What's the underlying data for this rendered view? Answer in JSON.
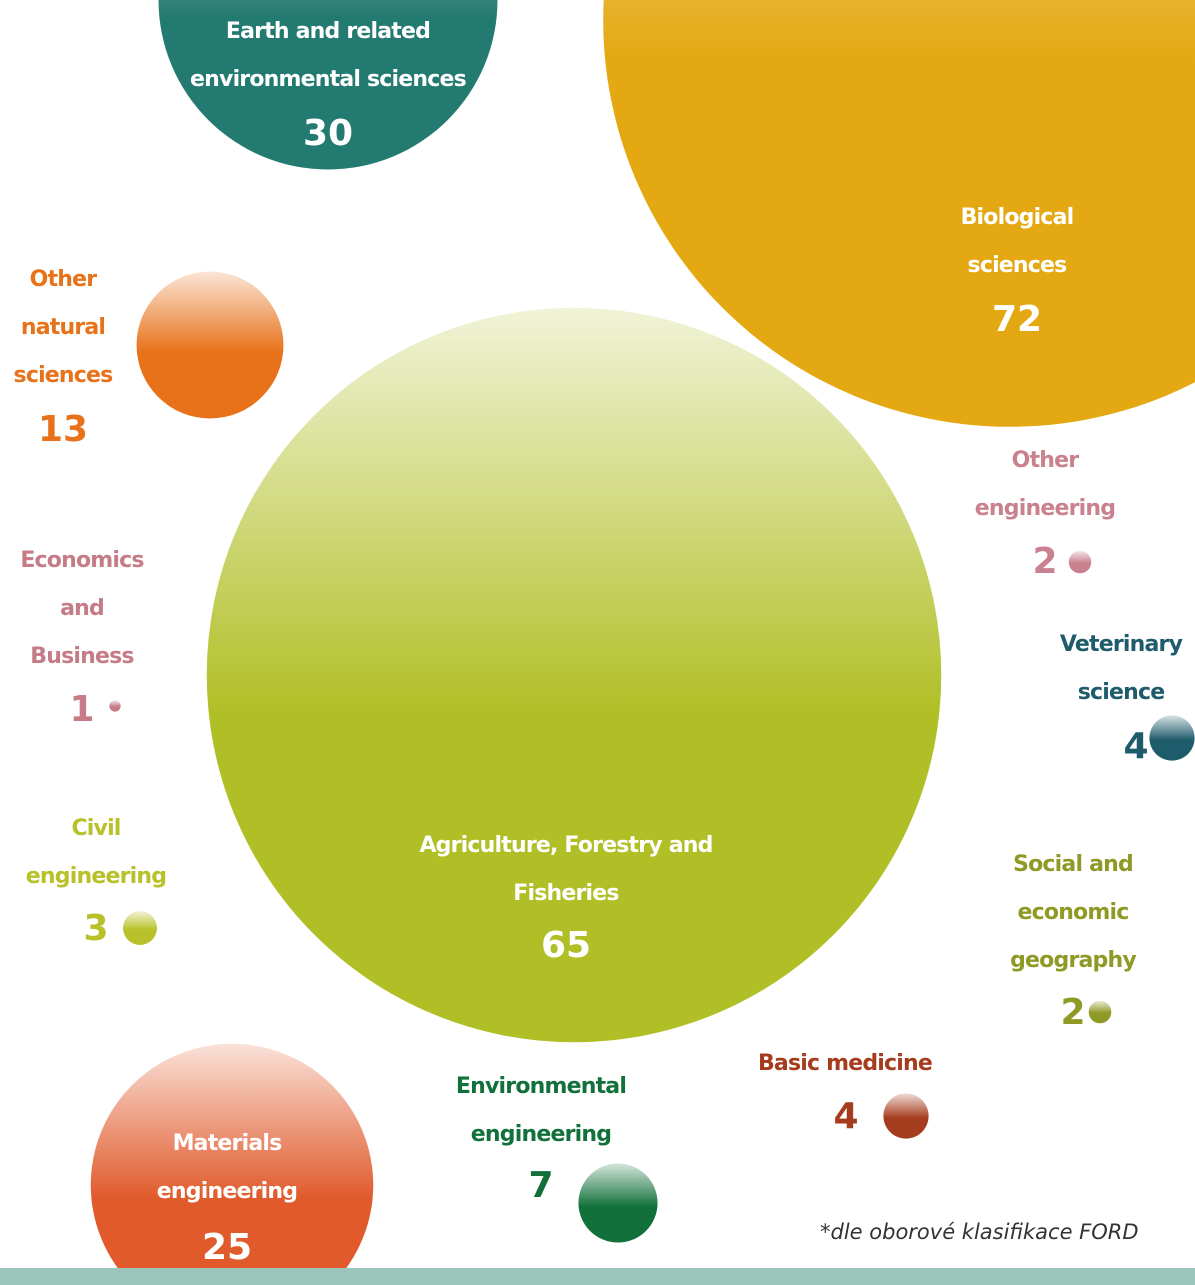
{
  "chart_data": {
    "type": "bubble",
    "series": [
      {
        "name": "Earth and related environmental sciences",
        "value": 30,
        "color": "#237a70"
      },
      {
        "name": "Biological sciences",
        "value": 72,
        "color": "#e4a812"
      },
      {
        "name": "Other natural sciences",
        "value": 13,
        "color": "#e8721a"
      },
      {
        "name": "Agriculture, Forestry and Fisheries",
        "value": 65,
        "color": "#b0bf26"
      },
      {
        "name": "Other engineering",
        "value": 2,
        "color": "#c9818f"
      },
      {
        "name": "Economics and Business",
        "value": 1,
        "color": "#c57c86"
      },
      {
        "name": "Veterinary science",
        "value": 4,
        "color": "#1e5b6b"
      },
      {
        "name": "Civil engineering",
        "value": 3,
        "color": "#b8c12a"
      },
      {
        "name": "Social and economic geography",
        "value": 2,
        "color": "#8f9a26"
      },
      {
        "name": "Basic medicine",
        "value": 4,
        "color": "#a63c1e"
      },
      {
        "name": "Environmental engineering",
        "value": 7,
        "color": "#12713b"
      },
      {
        "name": "Materials engineering",
        "value": 25,
        "color": "#e05a2b"
      }
    ],
    "footnote": "*dle oborové klasifikace FORD"
  }
}
